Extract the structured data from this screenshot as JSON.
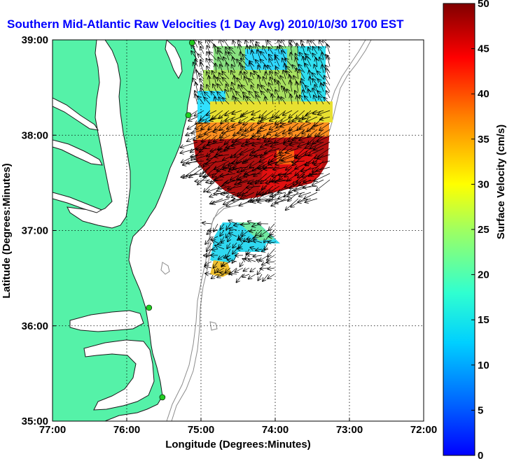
{
  "title": "Southern Mid-Atlantic Raw Velocities (1 Day Avg) 2010/10/30 1700 EST",
  "x_axis": {
    "label": "Longitude (Degrees:Minutes)",
    "ticks": [
      "77:00",
      "76:00",
      "75:00",
      "74:00",
      "73:00",
      "72:00"
    ]
  },
  "y_axis": {
    "label": "Latitude (Degrees:Minutes)",
    "ticks": [
      "39:00",
      "38:00",
      "37:00",
      "36:00",
      "35:00"
    ]
  },
  "colorbar": {
    "label": "Surface Velocity (cm/s)",
    "ticks": [
      "50",
      "45",
      "40",
      "35",
      "30",
      "25",
      "20",
      "15",
      "10",
      "5",
      "0"
    ],
    "range": [
      0,
      50
    ]
  },
  "colors": {
    "land": "#55f2a8",
    "water": "#ffffff",
    "title": "#0000ff",
    "coast": "#1a1a1a",
    "bathymetry": "#8c8c8c",
    "station": "#22cc22"
  },
  "map": {
    "lon_range": [
      -77,
      -72
    ],
    "lat_range": [
      35,
      39
    ],
    "grid": true,
    "stations": [
      {
        "lon": -75.12,
        "lat": 38.97
      },
      {
        "lon": -75.17,
        "lat": 38.21
      },
      {
        "lon": -75.7,
        "lat": 36.19
      },
      {
        "lon": -75.52,
        "lat": 35.25
      }
    ]
  }
}
